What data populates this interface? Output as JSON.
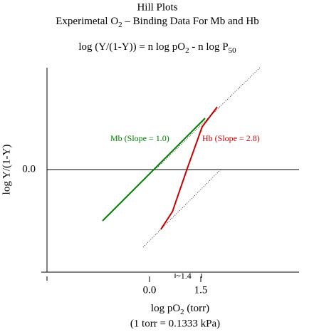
{
  "chart_data": {
    "type": "line",
    "title": "Hill Plots",
    "subtitle": [
      "Experimetal O",
      "2",
      " – Binding Data For Mb and Hb"
    ],
    "equation": [
      "log (Y/(1-Y)) = n log pO",
      "2",
      " - n log P",
      "50"
    ],
    "x_label": [
      "log pO",
      "2",
      " (torr)"
    ],
    "x_label_note": "(1 torr = 0.1333 kPa)",
    "y_label": "log Y/(1-Y)",
    "annotation": "~1.4",
    "xlim": [
      -3,
      4.4
    ],
    "ylim": [
      -3,
      3
    ],
    "xticks": [
      {
        "value": 0,
        "label": "0.0"
      },
      {
        "value": 1.5,
        "label": "1.5"
      }
    ],
    "yticks": [
      {
        "value": 0,
        "label": "0.0"
      }
    ],
    "series": [
      {
        "name": "Mb (Slope = 1.0)",
        "color": "#008000",
        "style": "solid",
        "x": [
          -1.375,
          1.625
        ],
        "values": [
          -1.5,
          1.5
        ]
      },
      {
        "name": "Hb (Slope = 2.8)",
        "color": "#cc0000",
        "style": "solid",
        "x": [
          0.33,
          0.67,
          1.1,
          1.54,
          1.98
        ],
        "values": [
          -1.75,
          -1.23,
          0.02,
          1.25,
          1.83
        ]
      },
      {
        "color": "#000000",
        "style": "dotted",
        "x": [
          0.21,
          3.23
        ],
        "values": [
          0.04,
          2.98
        ]
      },
      {
        "color": "#000000",
        "style": "dotted",
        "x": [
          -0.19,
          2.08
        ],
        "values": [
          -2.27,
          0
        ]
      }
    ]
  }
}
